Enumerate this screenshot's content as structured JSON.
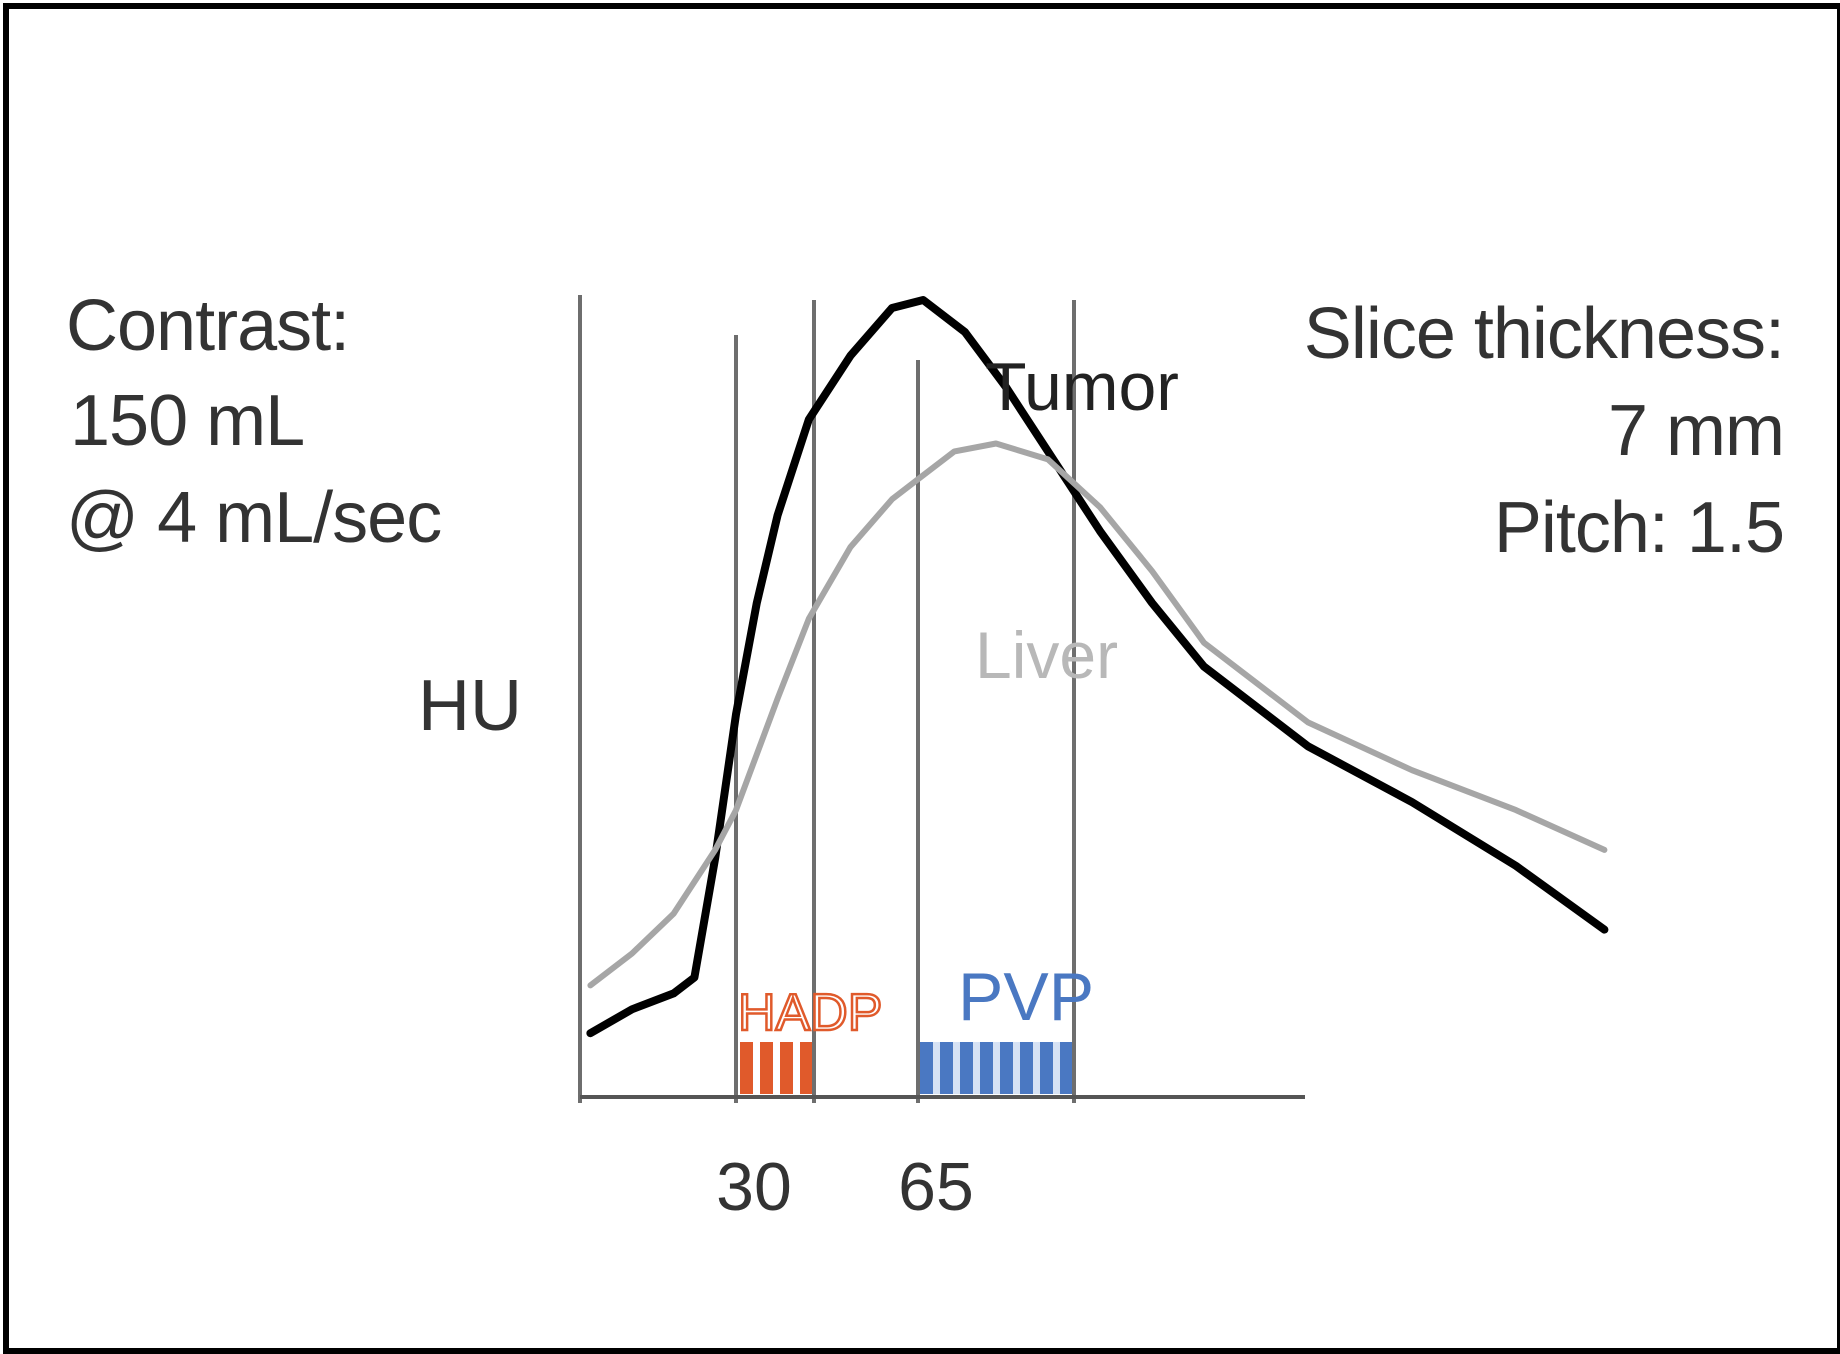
{
  "annotations": {
    "contrast_line1": "Contrast:",
    "contrast_line2": "150 mL",
    "contrast_line3": "@ 4 mL/sec",
    "slice_line1": "Slice thickness:",
    "slice_line2": "7 mm",
    "slice_line3": "Pitch:  1.5"
  },
  "chart_data": {
    "type": "line",
    "title": "",
    "xlabel": "",
    "ylabel": "HU",
    "x_ticks": [
      30,
      65
    ],
    "xlim": [
      0,
      200
    ],
    "ylim": [
      0,
      100
    ],
    "grid": false,
    "series": [
      {
        "name": "Tumor",
        "color": "#000000",
        "x": [
          2,
          10,
          18,
          22,
          26,
          30,
          34,
          38,
          44,
          52,
          60,
          66,
          74,
          82,
          90,
          100,
          110,
          120,
          140,
          160,
          180,
          197
        ],
        "y": [
          8,
          11,
          13,
          15,
          30,
          48,
          62,
          73,
          85,
          93,
          99,
          100,
          96,
          89,
          81,
          71,
          62,
          54,
          44,
          37,
          29,
          21
        ]
      },
      {
        "name": "Liver",
        "color": "#a6a6a6",
        "x": [
          2,
          10,
          18,
          22,
          26,
          30,
          34,
          38,
          44,
          52,
          60,
          66,
          72,
          80,
          90,
          100,
          110,
          120,
          140,
          160,
          180,
          197
        ],
        "y": [
          14,
          18,
          23,
          27,
          31,
          36,
          43,
          50,
          60,
          69,
          75,
          78,
          81,
          82,
          80,
          74,
          66,
          57,
          47,
          41,
          36,
          31
        ]
      }
    ],
    "phases": [
      {
        "name": "HADP",
        "x_start": 30,
        "x_end": 45,
        "color": "#e05a2b"
      },
      {
        "name": "PVP",
        "x_start": 65,
        "x_end": 95,
        "color": "#4a78c2"
      }
    ],
    "phase_boundaries": [
      0,
      30,
      45,
      65,
      95
    ]
  }
}
